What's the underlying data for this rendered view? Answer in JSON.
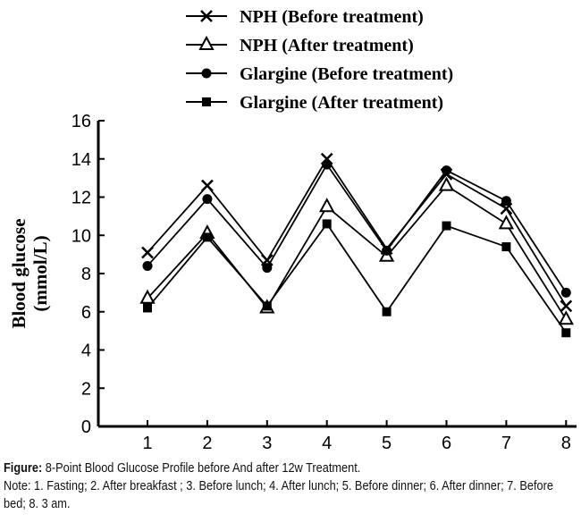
{
  "chart_data": {
    "type": "line",
    "ylabel": "Blood glucose (mmol/L)",
    "ylabel_lines": [
      "Blood glucose",
      "(mmol/L)"
    ],
    "xlabel": "",
    "x": [
      1,
      2,
      3,
      4,
      5,
      6,
      7,
      8
    ],
    "x_tick_labels": [
      "1",
      "2",
      "3",
      "4",
      "5",
      "6",
      "7",
      "8"
    ],
    "y_tick_labels": [
      "0",
      "2",
      "4",
      "6",
      "8",
      "10",
      "12",
      "14",
      "16"
    ],
    "ylim": [
      0,
      16
    ],
    "grid": false,
    "legend_position": "top",
    "series": [
      {
        "name": "NPH  (Before treatment)",
        "marker": "x",
        "values": [
          9.1,
          12.6,
          8.7,
          14.0,
          9.3,
          13.2,
          11.4,
          6.3
        ]
      },
      {
        "name": "NPH  (After treatment)",
        "marker": "triangle",
        "values": [
          6.7,
          10.1,
          6.2,
          11.5,
          8.9,
          12.6,
          10.6,
          5.6
        ]
      },
      {
        "name": "Glargine (Before treatment)",
        "marker": "circle",
        "values": [
          8.4,
          11.9,
          8.3,
          13.7,
          9.2,
          13.4,
          11.8,
          7.0
        ]
      },
      {
        "name": "Glargine (After treatment)",
        "marker": "square",
        "values": [
          6.2,
          9.9,
          6.3,
          10.6,
          6.0,
          10.5,
          9.4,
          4.9
        ]
      }
    ]
  },
  "caption": {
    "label": "Figure:",
    "title": " 8-Point Blood Glucose Profile before And after 12w Treatment.",
    "note": "Note: 1. Fasting; 2. After breakfast ; 3. Before lunch; 4. After lunch; 5. Before dinner; 6. After dinner; 7. Before bed; 8. 3 am."
  }
}
